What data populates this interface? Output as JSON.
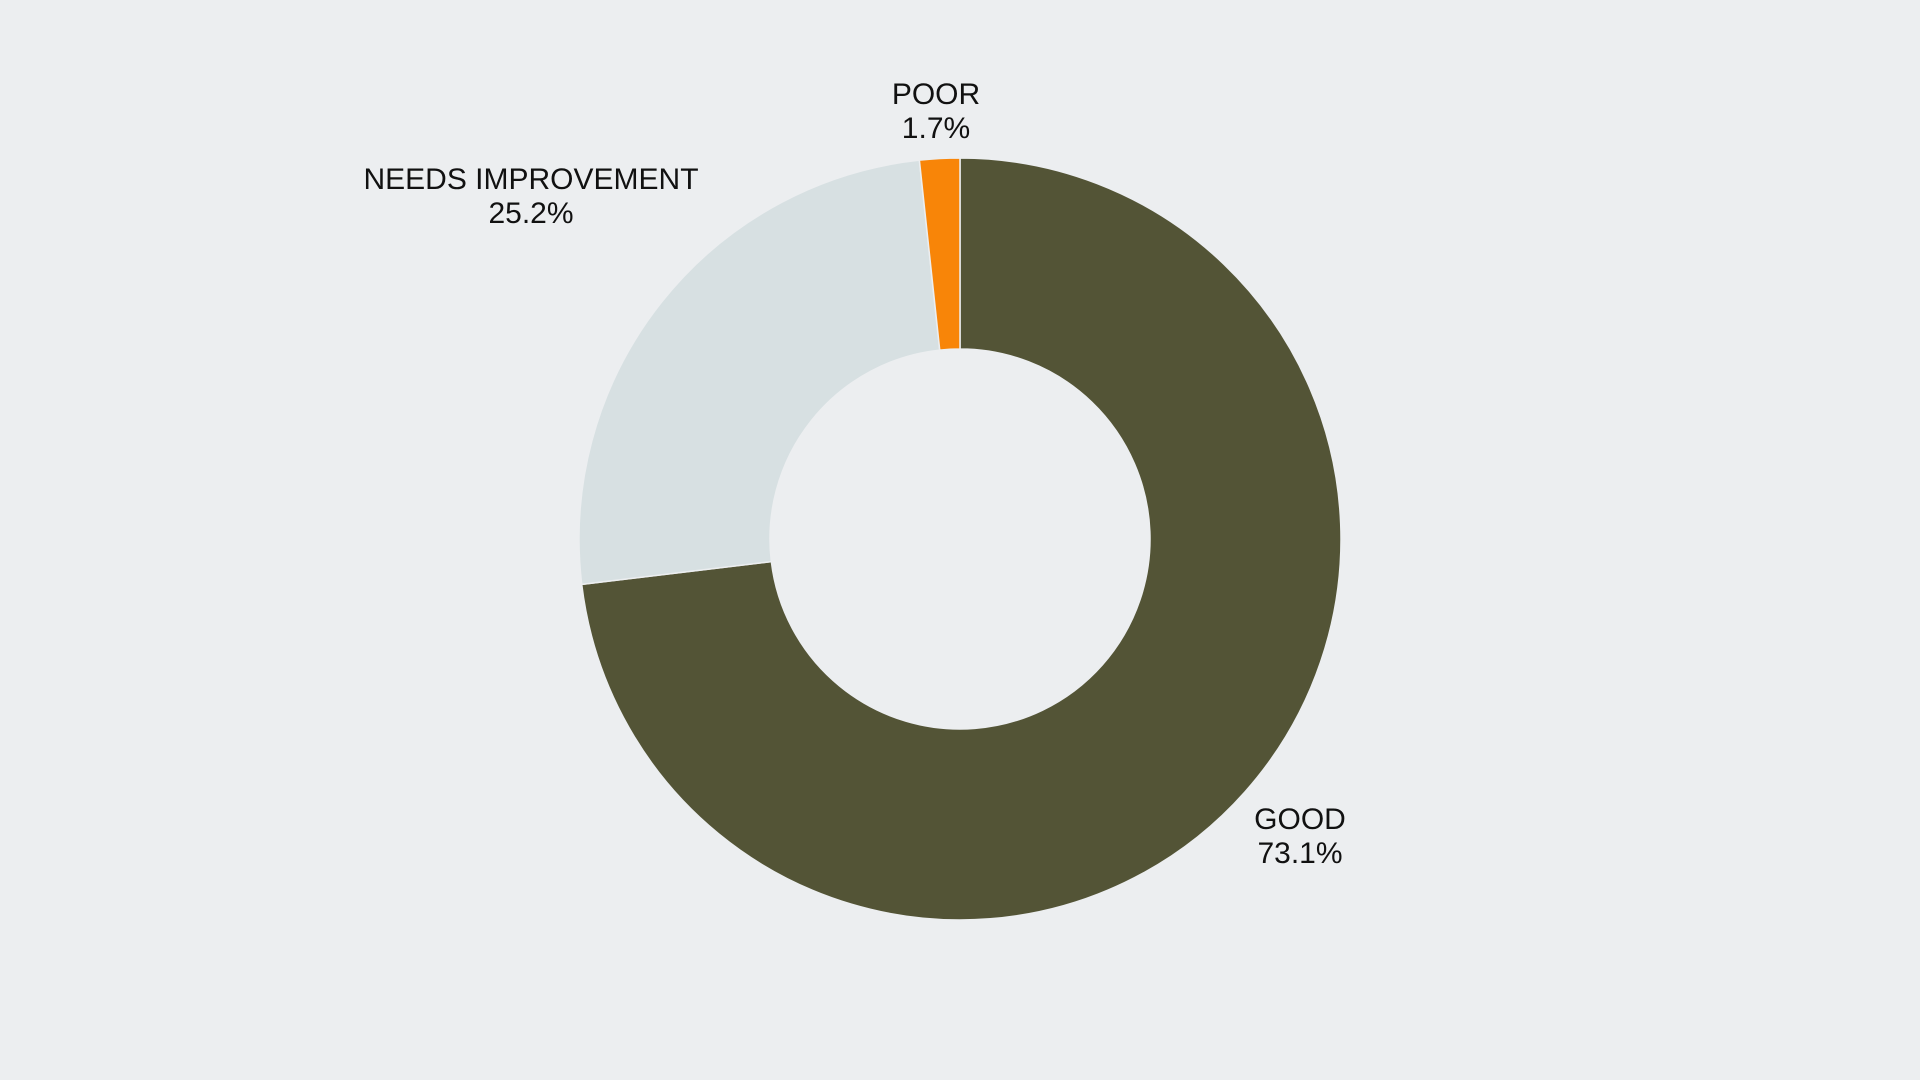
{
  "chart_data": {
    "type": "pie",
    "variant": "donut",
    "start": "12 o'clock",
    "direction": "clockwise",
    "legend": "none",
    "grid": false,
    "slices": [
      {
        "name": "GOOD",
        "value": 73.1,
        "label": "73.1%",
        "color": "#535436"
      },
      {
        "name": "NEEDS IMPROVEMENT",
        "value": 25.2,
        "label": "25.2%",
        "color": "#d7e0e2"
      },
      {
        "name": "POOR",
        "value": 1.7,
        "label": "1.7%",
        "color": "#f88508"
      }
    ]
  },
  "colors": {
    "background": "#eceef0",
    "hole": "#eceef0",
    "text": "#111111"
  }
}
